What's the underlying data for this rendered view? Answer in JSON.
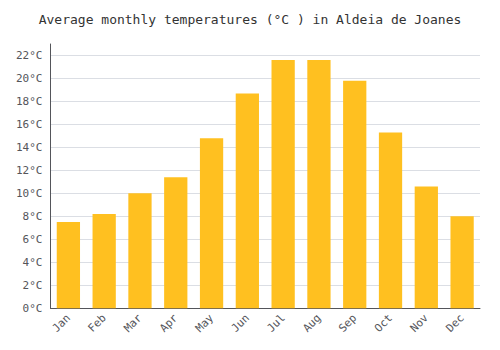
{
  "chart_data": {
    "type": "bar",
    "title": "Average monthly temperatures (°C ) in Aldeia de Joanes",
    "categories": [
      "Jan",
      "Feb",
      "Mar",
      "Apr",
      "May",
      "Jun",
      "Jul",
      "Aug",
      "Sep",
      "Oct",
      "Nov",
      "Dec"
    ],
    "values": [
      7.5,
      8.2,
      10.0,
      11.4,
      14.8,
      18.7,
      21.6,
      21.6,
      19.8,
      15.3,
      10.6,
      8.0
    ],
    "color": "#FFC020",
    "ylim": [
      0,
      23
    ],
    "yticks": [
      {
        "value": 0,
        "label": "0°C"
      },
      {
        "value": 2,
        "label": "2°C"
      },
      {
        "value": 4,
        "label": "4°C"
      },
      {
        "value": 6,
        "label": "6°C"
      },
      {
        "value": 8,
        "label": "8°C"
      },
      {
        "value": 10,
        "label": "10°C"
      },
      {
        "value": 12,
        "label": "12°C"
      },
      {
        "value": 14,
        "label": "14°C"
      },
      {
        "value": 16,
        "label": "16°C"
      },
      {
        "value": 18,
        "label": "18°C"
      },
      {
        "value": 20,
        "label": "20°C"
      },
      {
        "value": 22,
        "label": "22°C"
      }
    ],
    "grid": true
  }
}
